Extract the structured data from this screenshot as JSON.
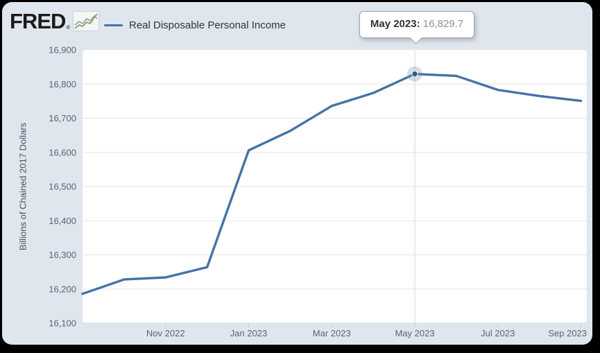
{
  "header": {
    "logo_text": "FRED",
    "logo_reg": "®",
    "logo_icon": "sparkline-chart-icon"
  },
  "legend": {
    "label": "Real Disposable Personal Income",
    "swatch_color": "#4572a7"
  },
  "tooltip": {
    "date_label": "May 2023:",
    "value": "16,829.7"
  },
  "colors": {
    "panel_bg": "#e0e6ee",
    "plot_bg": "#ffffff",
    "series_line": "#4572a7",
    "gridline": "#e6e6e6",
    "axis_text": "#5a6570",
    "crosshair": "#cfd4d9",
    "marker_dot": "#2d5c8f",
    "marker_halo": "rgba(110,135,160,0.28)",
    "logo_spark_green": "#7aa854",
    "logo_spark_gray": "#9aa5ad"
  },
  "chart_data": {
    "type": "line",
    "title": "",
    "xlabel": "",
    "ylabel": "Billions of Chained 2017 Dollars",
    "ylim": [
      16100,
      16900
    ],
    "y_tick_step": 100,
    "y_tick_labels": [
      "16,100",
      "16,200",
      "16,300",
      "16,400",
      "16,500",
      "16,600",
      "16,700",
      "16,800",
      "16,900"
    ],
    "grid": "horizontal",
    "legend_position": "top-left",
    "x": [
      "Sep 2022",
      "Oct 2022",
      "Nov 2022",
      "Dec 2022",
      "Jan 2023",
      "Feb 2023",
      "Mar 2023",
      "Apr 2023",
      "May 2023",
      "Jun 2023",
      "Jul 2023",
      "Aug 2023",
      "Sep 2023"
    ],
    "x_tick_indices": [
      2,
      4,
      6,
      8,
      10,
      12
    ],
    "x_tick_labels": [
      "Nov 2022",
      "Jan 2023",
      "Mar 2023",
      "May 2023",
      "Jul 2023",
      "Sep 2023"
    ],
    "series": [
      {
        "name": "Real Disposable Personal Income",
        "color": "#4572a7",
        "values": [
          16186,
          16228,
          16234,
          16264,
          16606,
          16663,
          16736,
          16774,
          16829.7,
          16824,
          16783,
          16765,
          16751
        ]
      }
    ],
    "hover": {
      "index": 8,
      "label": "May 2023",
      "value": 16829.7
    }
  }
}
